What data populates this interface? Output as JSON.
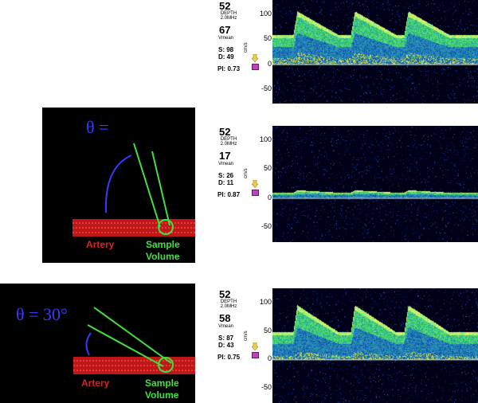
{
  "panels": {
    "top_right": {
      "depth": "52",
      "depth_label": "DEPTH\n2.0MHz",
      "vmean": "67",
      "vmean_label": "Vmean",
      "s": "S: 98",
      "d": "D: 49",
      "pi": "PI: 0.73",
      "ticks": [
        "100",
        "50",
        "0",
        "-50"
      ]
    },
    "mid_right": {
      "depth": "52",
      "depth_label": "DEPTH\n2.0MHz",
      "vmean": "17",
      "vmean_label": "Vmean",
      "s": "S: 26",
      "d": "D: 11",
      "pi": "PI: 0.87",
      "ticks": [
        "100",
        "50",
        "0",
        "-50"
      ]
    },
    "bot_right": {
      "depth": "52",
      "depth_label": "DEPTH\n2.0MHz",
      "vmean": "58",
      "vmean_label": "Vmean",
      "s": "S: 87",
      "d": "D: 43",
      "pi": "PI: 0.75",
      "ticks": [
        "100",
        "50",
        "0",
        "-50"
      ]
    },
    "units": "cm/s"
  },
  "diagrams": {
    "mid": {
      "theta": "θ =",
      "artery": "Artery",
      "sample": "Sample",
      "volume": "Volume"
    },
    "bot": {
      "theta": "θ = 30°",
      "artery": "Artery",
      "sample": "Sample",
      "volume": "Volume"
    }
  },
  "colors": {
    "theta": "#3a3aff",
    "artery": "#e02020",
    "sample": "#40e040",
    "beam": "#40e040"
  }
}
